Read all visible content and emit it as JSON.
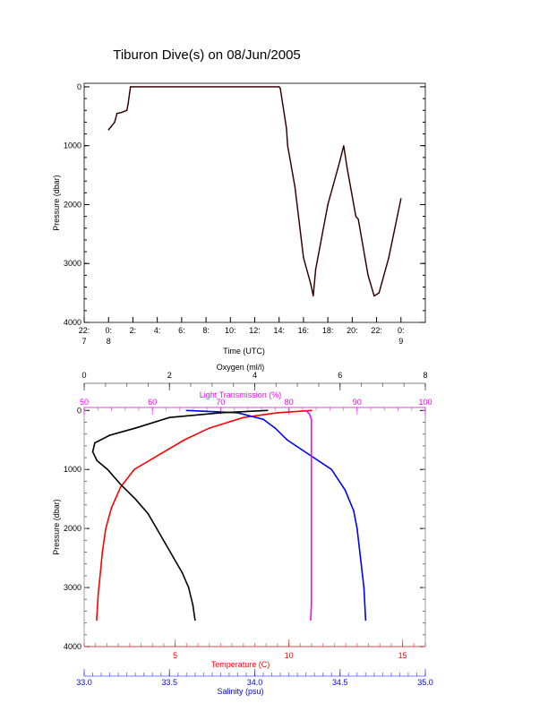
{
  "title": "Tiburon Dive(s) on 08/Jun/2005",
  "chart_data": [
    {
      "type": "line",
      "xlabel": "Time (UTC)",
      "ylabel": "Pressure (dbar)",
      "x_unit": "hours since 0:00 on 8 Jun 2005",
      "xlim": [
        -2,
        26
      ],
      "ylim": [
        4000,
        -60
      ],
      "y_reversed": true,
      "xticks": [
        {
          "v": -2,
          "l1": "22:",
          "l2": "7"
        },
        {
          "v": 0,
          "l1": "0:",
          "l2": "8"
        },
        {
          "v": 2,
          "l1": "2:",
          "l2": ""
        },
        {
          "v": 4,
          "l1": "4:",
          "l2": ""
        },
        {
          "v": 6,
          "l1": "6:",
          "l2": ""
        },
        {
          "v": 8,
          "l1": "8:",
          "l2": ""
        },
        {
          "v": 10,
          "l1": "10:",
          "l2": ""
        },
        {
          "v": 12,
          "l1": "12:",
          "l2": ""
        },
        {
          "v": 14,
          "l1": "14:",
          "l2": ""
        },
        {
          "v": 16,
          "l1": "16:",
          "l2": ""
        },
        {
          "v": 18,
          "l1": "18:",
          "l2": ""
        },
        {
          "v": 20,
          "l1": "20:",
          "l2": ""
        },
        {
          "v": 22,
          "l1": "22:",
          "l2": ""
        },
        {
          "v": 24,
          "l1": "0:",
          "l2": "9"
        }
      ],
      "yticks": [
        0,
        1000,
        2000,
        3000,
        4000
      ],
      "series": [
        {
          "color": "#000000",
          "x": [
            0,
            0.2,
            0.5,
            0.7,
            1.0,
            1.5,
            1.6,
            1.8,
            2,
            14.0,
            14.1,
            14.3,
            14.6,
            14.7,
            15.3,
            16.0,
            16.6,
            16.8,
            17.0,
            18.0,
            19.0,
            19.3,
            19.6,
            20.3,
            20.5,
            21.3,
            21.8,
            22.2,
            23.0,
            24.0
          ],
          "y": [
            730,
            680,
            600,
            450,
            440,
            400,
            300,
            0,
            0,
            0,
            30,
            300,
            700,
            1000,
            1700,
            2900,
            3350,
            3550,
            3100,
            2000,
            1250,
            1000,
            1400,
            2200,
            2250,
            3200,
            3550,
            3500,
            2900,
            1900
          ]
        }
      ]
    },
    {
      "type": "scatter",
      "ylabel": "Pressure (dbar)",
      "ylim": [
        4000,
        -50
      ],
      "y_reversed": true,
      "yticks": [
        0,
        1000,
        2000,
        3000,
        4000
      ],
      "axes": {
        "oxygen": {
          "label": "Oxygen (ml/l)",
          "color": "#000000",
          "lim": [
            0,
            8
          ],
          "ticks": [
            0,
            2,
            4,
            6,
            8
          ],
          "position": "top"
        },
        "light": {
          "label": "Light Transmission (%)",
          "color": "#ff00ff",
          "lim": [
            50,
            100
          ],
          "ticks": [
            50,
            60,
            70,
            80,
            90,
            100
          ],
          "position": "top"
        },
        "temperature": {
          "label": "Temperature (C)",
          "color": "#ff0000",
          "lim": [
            1,
            16
          ],
          "ticks": [
            5,
            10,
            15
          ],
          "position": "bottom"
        },
        "salinity": {
          "label": "Salinity (psu)",
          "color": "#0000ff",
          "lim": [
            33.0,
            35.0
          ],
          "ticks": [
            "33.0",
            "33.5",
            "34.0",
            "34.5",
            "35.0"
          ],
          "position": "bottom"
        }
      },
      "series": [
        {
          "axis": "temperature",
          "color": "#ff0000",
          "x": [
            11.0,
            9.5,
            8.0,
            6.5,
            5.4,
            4.3,
            3.2,
            2.6,
            2.2,
            1.95,
            1.8,
            1.7,
            1.62,
            1.58,
            1.55
          ],
          "y": [
            0,
            40,
            120,
            300,
            500,
            750,
            1000,
            1300,
            1650,
            2000,
            2400,
            2800,
            3100,
            3350,
            3550
          ]
        },
        {
          "axis": "salinity",
          "color": "#0000ff",
          "x": [
            33.6,
            33.9,
            34.05,
            34.12,
            34.19,
            34.32,
            34.45,
            34.53,
            34.58,
            34.6,
            34.62,
            34.64,
            34.65
          ],
          "y": [
            0,
            40,
            150,
            300,
            500,
            750,
            1000,
            1350,
            1700,
            2000,
            2500,
            3000,
            3550
          ]
        },
        {
          "axis": "oxygen",
          "color": "#000000",
          "x": [
            4.3,
            3.2,
            2.0,
            1.2,
            0.6,
            0.25,
            0.2,
            0.3,
            0.55,
            0.85,
            1.2,
            1.5,
            1.7,
            1.9,
            2.1,
            2.3,
            2.45,
            2.55,
            2.6
          ],
          "y": [
            0,
            40,
            120,
            300,
            420,
            550,
            700,
            850,
            1000,
            1250,
            1500,
            1750,
            2000,
            2250,
            2500,
            2750,
            3000,
            3300,
            3550
          ]
        },
        {
          "axis": "light",
          "color": "#ff00ff",
          "x": [
            82.5,
            83.0,
            83.3,
            83.3,
            83.3,
            83.3,
            83.3,
            83.2
          ],
          "y": [
            0,
            60,
            150,
            500,
            1500,
            2500,
            3300,
            3550
          ]
        }
      ]
    }
  ]
}
